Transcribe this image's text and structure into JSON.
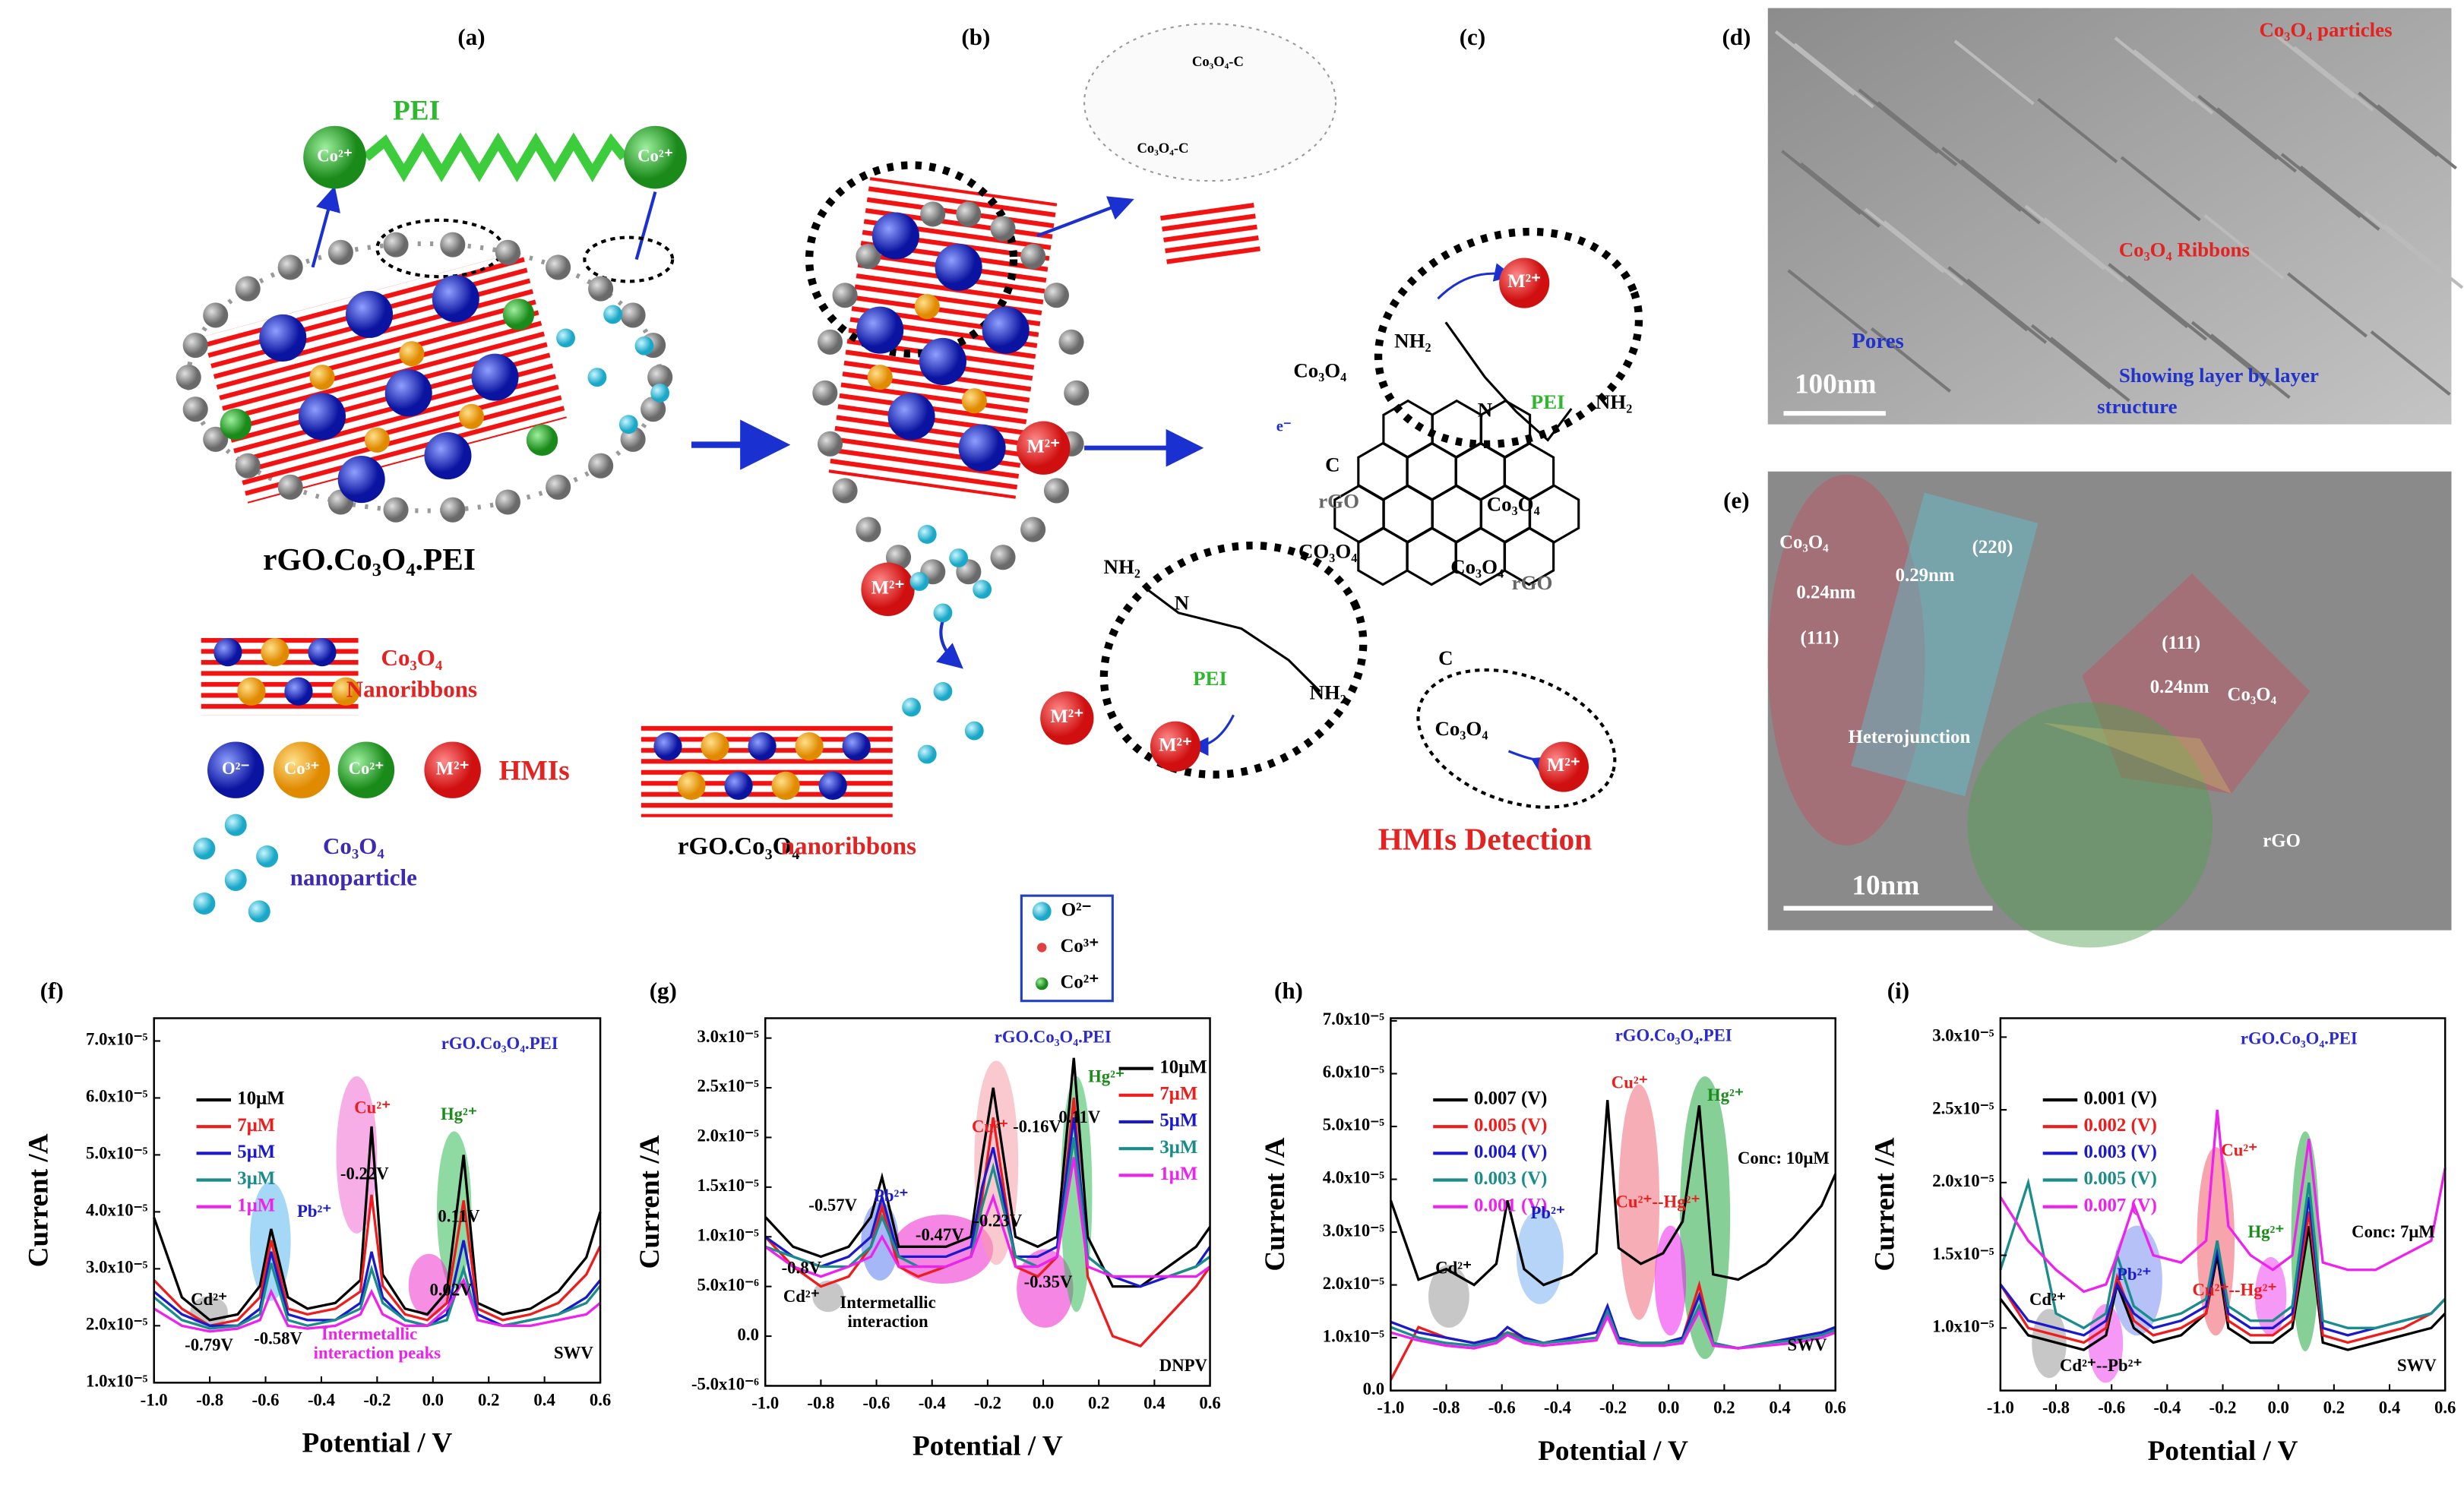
{
  "figure": {
    "a": [
      "(a)",
      "PEI",
      "Co²⁺",
      "Co²⁺",
      "rGO.Co₃O₄.PEI",
      "Co₃O₄",
      "Nanoribbons",
      "O²⁻",
      "Co³⁺",
      "Co²⁺",
      "M²⁺",
      "HMIs",
      "Co₃O₄",
      "nanoparticle"
    ],
    "b": [
      "(b)",
      "M²⁺",
      "M²⁺",
      "M²⁺",
      "rGO.Co₃O₄",
      "nanoribbons",
      "O²⁻",
      "Co³⁺",
      "Co²⁺",
      "Co₃O₄-C",
      "Co₃O₄-C"
    ],
    "c": [
      "(c)",
      "Co₃O₄",
      "C",
      "rGO",
      "e⁻",
      "NH₂",
      "N",
      "PEI",
      "NH₂",
      "M²⁺",
      "Co₃O₄",
      "CO₃O₄",
      "NH₂",
      "N",
      "PEI",
      "NH₂",
      "M²⁺",
      "Co₃O₄",
      "rGO",
      "Co₃O₄",
      "M²⁺",
      "HMIs Detection",
      "C"
    ],
    "d": [
      "(d)",
      "Co₃O₄ particles",
      "Co₃O₄ Ribbons",
      "Pores",
      "100nm",
      "Showing layer by layer",
      "structure"
    ],
    "e": [
      "(e)",
      "Co₃O₄",
      "0.24nm",
      "(111)",
      "(220)",
      "0.29nm",
      "Heterojunction",
      "(111)",
      "0.24nm",
      "Co₃O₄",
      "rGO",
      "10nm"
    ]
  },
  "chart_data": [
    {
      "type": "line",
      "label": "(f)",
      "xaxis_label": "Potential / V",
      "yaxis_label": "Current /A",
      "legend": "upper left",
      "x": [
        -1,
        -0.9,
        -0.8,
        -0.7,
        -0.62,
        -0.58,
        -0.52,
        -0.45,
        -0.35,
        -0.26,
        -0.22,
        -0.18,
        -0.1,
        -0.02,
        0.05,
        0.11,
        0.16,
        0.25,
        0.35,
        0.45,
        0.55,
        0.6
      ],
      "xlim": [
        -1,
        0.6
      ],
      "xticks": [
        {
          "value": -1,
          "label": "-1.0"
        },
        -0.8,
        -0.6,
        -0.4,
        -0.2,
        {
          "value": 0,
          "label": "0.0"
        },
        0.2,
        0.4,
        0.6
      ],
      "ylim": [
        1e-05,
        7.4e-05
      ],
      "yticks": [
        {
          "value": 1e-05,
          "label": "1.0x10⁻⁵"
        },
        {
          "value": 2e-05,
          "label": "2.0x10⁻⁵"
        },
        {
          "value": 3e-05,
          "label": "3.0x10⁻⁵"
        },
        {
          "value": 4e-05,
          "label": "4.0x10⁻⁵"
        },
        {
          "value": 5e-05,
          "label": "5.0x10⁻⁵"
        },
        {
          "value": 6e-05,
          "label": "6.0x10⁻⁵"
        },
        {
          "value": 7e-05,
          "label": "7.0x10⁻⁵"
        }
      ],
      "annotations": [
        "rGO.Co₃O₄.PEI",
        "Cu²⁺",
        "Hg²⁺",
        "Pb²⁺",
        "Cd²⁺",
        "-0.22V",
        "0.11V",
        "0.02V",
        "-0.58V",
        "-0.79V",
        "Intermetallic",
        "interaction peaks",
        "SWV"
      ],
      "series": [
        {
          "name": "10μM",
          "color": "#000000",
          "values": [
            3.9e-05,
            2.5e-05,
            2.1e-05,
            2.2e-05,
            2.7e-05,
            3.7e-05,
            2.5e-05,
            2.3e-05,
            2.4e-05,
            2.8e-05,
            5.5e-05,
            2.9e-05,
            2.3e-05,
            2.2e-05,
            2.6e-05,
            5e-05,
            2.4e-05,
            2.2e-05,
            2.3e-05,
            2.6e-05,
            3.2e-05,
            4e-05
          ]
        },
        {
          "name": "7μM",
          "color": "#ee1c1c",
          "values": [
            2.8e-05,
            2.3e-05,
            2e-05,
            2.1e-05,
            2.5e-05,
            3.5e-05,
            2.3e-05,
            2.2e-05,
            2.3e-05,
            2.6e-05,
            4.3e-05,
            2.7e-05,
            2.2e-05,
            2.1e-05,
            2.4e-05,
            4.2e-05,
            2.3e-05,
            2.1e-05,
            2.2e-05,
            2.4e-05,
            2.9e-05,
            3.4e-05
          ]
        },
        {
          "name": "5μM",
          "color": "#1a1acc",
          "values": [
            2.6e-05,
            2.2e-05,
            2e-05,
            2e-05,
            2.3e-05,
            3.3e-05,
            2.2e-05,
            2.1e-05,
            2.1e-05,
            2.4e-05,
            3.3e-05,
            2.5e-05,
            2.1e-05,
            2e-05,
            2.2e-05,
            3.5e-05,
            2.2e-05,
            2e-05,
            2.1e-05,
            2.2e-05,
            2.5e-05,
            2.8e-05
          ]
        },
        {
          "name": "3μM",
          "color": "#1a8c8c",
          "values": [
            2.5e-05,
            2.1e-05,
            1.95e-05,
            2e-05,
            2.2e-05,
            3.1e-05,
            2.1e-05,
            2e-05,
            2.1e-05,
            2.3e-05,
            3e-05,
            2.4e-05,
            2.1e-05,
            2e-05,
            2.1e-05,
            3e-05,
            2.1e-05,
            2e-05,
            2.1e-05,
            2.2e-05,
            2.4e-05,
            2.7e-05
          ]
        },
        {
          "name": "1μM",
          "color": "#ee22ee",
          "values": [
            2.3e-05,
            2e-05,
            1.9e-05,
            1.95e-05,
            2.1e-05,
            2.6e-05,
            2e-05,
            1.95e-05,
            2e-05,
            2.2e-05,
            2.6e-05,
            2.2e-05,
            2e-05,
            2e-05,
            2.3e-05,
            2.8e-05,
            2.1e-05,
            2e-05,
            2e-05,
            2.1e-05,
            2.2e-05,
            2.4e-05
          ]
        }
      ]
    },
    {
      "type": "line",
      "label": "(g)",
      "xaxis_label": "Potential / V",
      "yaxis_label": "Current /A",
      "legend": "center right",
      "x": [
        -1,
        -0.9,
        -0.8,
        -0.7,
        -0.62,
        -0.58,
        -0.52,
        -0.45,
        -0.35,
        -0.26,
        -0.22,
        -0.18,
        -0.1,
        -0.02,
        0.05,
        0.11,
        0.16,
        0.25,
        0.35,
        0.45,
        0.55,
        0.6
      ],
      "xlim": [
        -1,
        0.6
      ],
      "xticks": [
        {
          "value": -1,
          "label": "-1.0"
        },
        -0.8,
        -0.6,
        -0.4,
        -0.2,
        {
          "value": 0,
          "label": "0.0"
        },
        0.2,
        0.4,
        0.6
      ],
      "ylim": [
        -5e-06,
        3.2e-05
      ],
      "yticks": [
        {
          "value": -5e-06,
          "label": "-5.0x10⁻⁶"
        },
        {
          "value": 0,
          "label": "0.0"
        },
        {
          "value": 5e-06,
          "label": "5.0x10⁻⁶"
        },
        {
          "value": 1e-05,
          "label": "1.0x10⁻⁵"
        },
        {
          "value": 1.5e-05,
          "label": "1.5x10⁻⁵"
        },
        {
          "value": 2e-05,
          "label": "2.0x10⁻⁵"
        },
        {
          "value": 2.5e-05,
          "label": "2.5x10⁻⁵"
        },
        {
          "value": 3e-05,
          "label": "3.0x10⁻⁵"
        }
      ],
      "annotations": [
        "rGO.Co₃O₄.PEI",
        "Cu²⁺",
        "-0.16V",
        "Hg²⁺",
        "0.11V",
        "-0.57V",
        "Pb²⁺",
        "-0.8V",
        "Cd²⁺",
        "-0.47V",
        "-0.23V",
        "-0.35V",
        "Intermetallic",
        "interaction",
        "DNPV"
      ],
      "series": [
        {
          "name": "10μM",
          "color": "#000000",
          "values": [
            1.2e-05,
            9e-06,
            8e-06,
            9e-06,
            1.2e-05,
            1.6e-05,
            9e-06,
            9e-06,
            9e-06,
            1e-05,
            1.8e-05,
            2.5e-05,
            1e-05,
            9e-06,
            1e-05,
            2.8e-05,
            1e-05,
            5e-06,
            5e-06,
            7e-06,
            9e-06,
            1.1e-05
          ]
        },
        {
          "name": "7μM",
          "color": "#ee1c1c",
          "values": [
            1e-05,
            7e-06,
            5e-06,
            6e-06,
            9e-06,
            1.3e-05,
            7e-06,
            6e-06,
            7e-06,
            8e-06,
            1.4e-05,
            2.2e-05,
            7e-06,
            6e-06,
            8e-06,
            2.4e-05,
            6e-06,
            0,
            -1e-06,
            2e-06,
            5e-06,
            7e-06
          ]
        },
        {
          "name": "5μM",
          "color": "#1a1acc",
          "values": [
            1e-05,
            8e-06,
            7e-06,
            8e-06,
            1e-05,
            1.4e-05,
            8e-06,
            8e-06,
            8e-06,
            9e-06,
            1.5e-05,
            1.9e-05,
            8e-06,
            8e-06,
            9e-06,
            2.2e-05,
            8e-06,
            6e-06,
            5e-06,
            6e-06,
            7e-06,
            9e-06
          ]
        },
        {
          "name": "3μM",
          "color": "#1a8c8c",
          "values": [
            9e-06,
            8e-06,
            7e-06,
            7e-06,
            9e-06,
            1.2e-05,
            8e-06,
            7e-06,
            7e-06,
            8e-06,
            1.3e-05,
            1.7e-05,
            8e-06,
            7e-06,
            8e-06,
            2e-05,
            8e-06,
            6e-06,
            6e-06,
            6e-06,
            7e-06,
            8e-06
          ]
        },
        {
          "name": "1μM",
          "color": "#ee22ee",
          "values": [
            9e-06,
            7e-06,
            6e-06,
            7e-06,
            8e-06,
            1e-05,
            7e-06,
            7e-06,
            7e-06,
            8e-06,
            1.1e-05,
            1.4e-05,
            7e-06,
            7e-06,
            8e-06,
            1.8e-05,
            7e-06,
            6e-06,
            6e-06,
            6e-06,
            6e-06,
            7e-06
          ]
        }
      ]
    },
    {
      "type": "line",
      "label": "(h)",
      "xaxis_label": "Potential / V",
      "yaxis_label": "Current /A",
      "legend": "upper left",
      "x": [
        -1,
        -0.9,
        -0.8,
        -0.7,
        -0.62,
        -0.58,
        -0.52,
        -0.45,
        -0.35,
        -0.26,
        -0.22,
        -0.18,
        -0.1,
        -0.02,
        0.05,
        0.11,
        0.16,
        0.25,
        0.35,
        0.45,
        0.55,
        0.6
      ],
      "xlim": [
        -1,
        0.6
      ],
      "xticks": [
        {
          "value": -1,
          "label": "-1.0"
        },
        -0.8,
        -0.6,
        -0.4,
        -0.2,
        {
          "value": 0,
          "label": "0.0"
        },
        0.2,
        0.4,
        0.6
      ],
      "ylim": [
        0,
        7.05e-05
      ],
      "yticks": [
        {
          "value": 0,
          "label": "0.0"
        },
        {
          "value": 1e-05,
          "label": "1.0x10⁻⁵"
        },
        {
          "value": 2e-05,
          "label": "2.0x10⁻⁵"
        },
        {
          "value": 3e-05,
          "label": "3.0x10⁻⁵"
        },
        {
          "value": 4e-05,
          "label": "4.0x10⁻⁵"
        },
        {
          "value": 5e-05,
          "label": "5.0x10⁻⁵"
        },
        {
          "value": 6e-05,
          "label": "6.0x10⁻⁵"
        },
        {
          "value": 7e-05,
          "label": "7.0x10⁻⁵"
        }
      ],
      "annotations": [
        "rGO.Co₃O₄.PEI",
        "Cu²⁺",
        "Hg²⁺",
        "Pb²⁺",
        "Cd²⁺",
        "Cu²⁺--Hg²⁺",
        "Conc: 10μM",
        "SWV"
      ],
      "series": [
        {
          "name": "0.007 (V)",
          "color": "#000000",
          "values": [
            3.6e-05,
            2.1e-05,
            2.3e-05,
            2e-05,
            2.4e-05,
            3.6e-05,
            2.3e-05,
            2e-05,
            2.2e-05,
            2.6e-05,
            5.5e-05,
            2.7e-05,
            2.4e-05,
            2.6e-05,
            3.2e-05,
            5.4e-05,
            2.2e-05,
            2.1e-05,
            2.4e-05,
            2.9e-05,
            3.5e-05,
            4.1e-05
          ]
        },
        {
          "name": "0.005 (V)",
          "color": "#ee1c1c",
          "values": [
            2e-06,
            1.2e-05,
            1e-05,
            9e-06,
            1e-05,
            1.1e-05,
            1e-05,
            9e-06,
            1e-05,
            1.1e-05,
            1.5e-05,
            1e-05,
            9e-06,
            9e-06,
            1e-05,
            2e-05,
            9e-06,
            8e-06,
            9e-06,
            1e-05,
            1.1e-05,
            1.2e-05
          ]
        },
        {
          "name": "0.004 (V)",
          "color": "#1a1acc",
          "values": [
            1.3e-05,
            1.1e-05,
            1e-05,
            9e-06,
            1e-05,
            1.2e-05,
            1e-05,
            9e-06,
            1e-05,
            1.1e-05,
            1.6e-05,
            1e-05,
            9e-06,
            9e-06,
            1e-05,
            1.8e-05,
            9e-06,
            8e-06,
            9e-06,
            1e-05,
            1.1e-05,
            1.2e-05
          ]
        },
        {
          "name": "0.003 (V)",
          "color": "#1a8c8c",
          "values": [
            1.2e-05,
            1e-05,
            9e-06,
            8.5e-06,
            9.5e-06,
            1.1e-05,
            9.5e-06,
            9e-06,
            9.5e-06,
            1e-05,
            1.5e-05,
            9.5e-06,
            9e-06,
            9e-06,
            9.5e-06,
            1.6e-05,
            9e-06,
            8e-06,
            9e-06,
            9.5e-06,
            1.05e-05,
            1.15e-05
          ]
        },
        {
          "name": "0.001 (V)",
          "color": "#ee22ee",
          "values": [
            1.1e-05,
            9.5e-06,
            8.5e-06,
            8e-06,
            9e-06,
            1.05e-05,
            9e-06,
            8.5e-06,
            9e-06,
            9.5e-06,
            1.4e-05,
            9e-06,
            8.5e-06,
            8.5e-06,
            9e-06,
            1.5e-05,
            8.5e-06,
            8e-06,
            8.5e-06,
            9e-06,
            1e-05,
            1.1e-05
          ]
        }
      ]
    },
    {
      "type": "line",
      "label": "(i)",
      "xaxis_label": "Potential / V",
      "yaxis_label": "Current /A",
      "legend": "upper left",
      "x": [
        -1,
        -0.9,
        -0.8,
        -0.7,
        -0.62,
        -0.58,
        -0.52,
        -0.45,
        -0.35,
        -0.26,
        -0.22,
        -0.18,
        -0.1,
        -0.02,
        0.05,
        0.11,
        0.16,
        0.25,
        0.35,
        0.45,
        0.55,
        0.6
      ],
      "xlim": [
        -1,
        0.6
      ],
      "xticks": [
        {
          "value": -1,
          "label": "-1.0"
        },
        -0.8,
        -0.6,
        -0.4,
        -0.2,
        {
          "value": 0,
          "label": "0.0"
        },
        0.2,
        0.4,
        0.6
      ],
      "ylim": [
        5.7e-06,
        3.13e-05
      ],
      "yticks": [
        {
          "value": 1e-05,
          "label": "1.0x10⁻⁵"
        },
        {
          "value": 1.5e-05,
          "label": "1.5x10⁻⁵"
        },
        {
          "value": 2e-05,
          "label": "2.0x10⁻⁵"
        },
        {
          "value": 2.5e-05,
          "label": "2.5x10⁻⁵"
        },
        {
          "value": 3e-05,
          "label": "3.0x10⁻⁵"
        }
      ],
      "annotations": [
        "rGO.Co₃O₄.PEI",
        "Cu²⁺",
        "Hg²⁺",
        "Pb²⁺",
        "Cd²⁺",
        "Cd²⁺--Pb²⁺",
        "Cu²⁺--Hg²⁺",
        "Conc: 7μM",
        "SWV"
      ],
      "series": [
        {
          "name": "0.001 (V)",
          "color": "#000000",
          "values": [
            1.2e-05,
            9.5e-06,
            9e-06,
            8.5e-06,
            9.5e-06,
            1.3e-05,
            1e-05,
            9e-06,
            9.5e-06,
            1.1e-05,
            1.5e-05,
            1e-05,
            9e-06,
            9e-06,
            1e-05,
            1.7e-05,
            9e-06,
            8.5e-06,
            9e-06,
            9.5e-06,
            1e-05,
            1.1e-05
          ]
        },
        {
          "name": "0.002 (V)",
          "color": "#ee1c1c",
          "values": [
            1.3e-05,
            1e-05,
            9.5e-06,
            9e-06,
            1e-05,
            1.35e-05,
            1.05e-05,
            9.5e-06,
            1e-05,
            1.1e-05,
            1.6e-05,
            1.05e-05,
            9.5e-06,
            9.5e-06,
            1.05e-05,
            1.8e-05,
            9.5e-06,
            9e-06,
            9.5e-06,
            1e-05,
            1.1e-05,
            1.2e-05
          ]
        },
        {
          "name": "0.003 (V)",
          "color": "#1a1acc",
          "values": [
            1.3e-05,
            1.05e-05,
            1e-05,
            9.5e-06,
            1.05e-05,
            1.3e-05,
            1.1e-05,
            1e-05,
            1.05e-05,
            1.15e-05,
            1.55e-05,
            1.1e-05,
            1e-05,
            1e-05,
            1.1e-05,
            1.9e-05,
            1e-05,
            9.5e-06,
            1e-05,
            1.05e-05,
            1.1e-05,
            1.2e-05
          ]
        },
        {
          "name": "0.005 (V)",
          "color": "#1a8c8c",
          "values": [
            1.4e-05,
            2e-05,
            1.1e-05,
            1e-05,
            1.1e-05,
            1.5e-05,
            1.15e-05,
            1.05e-05,
            1.1e-05,
            1.2e-05,
            1.6e-05,
            1.15e-05,
            1.05e-05,
            1.05e-05,
            1.15e-05,
            2e-05,
            1.05e-05,
            1e-05,
            1e-05,
            1.05e-05,
            1.1e-05,
            1.2e-05
          ]
        },
        {
          "name": "0.007 (V)",
          "color": "#ee22ee",
          "values": [
            1.9e-05,
            1.6e-05,
            1.4e-05,
            1.25e-05,
            1.3e-05,
            1.5e-05,
            1.85e-05,
            1.5e-05,
            1.45e-05,
            1.6e-05,
            2.5e-05,
            1.7e-05,
            1.5e-05,
            1.4e-05,
            1.5e-05,
            2.3e-05,
            1.45e-05,
            1.4e-05,
            1.4e-05,
            1.5e-05,
            1.6e-05,
            2.1e-05
          ]
        }
      ]
    }
  ]
}
